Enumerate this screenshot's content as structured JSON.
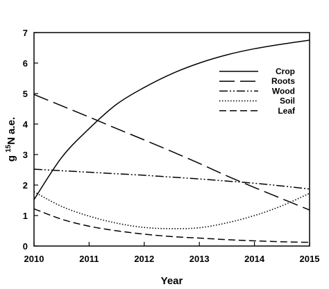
{
  "chart_data": {
    "type": "line",
    "title": "",
    "xlabel": "Year",
    "ylabel_prefix": "g ",
    "ylabel_sup": "15",
    "ylabel_suffix": "N a.e.",
    "xlim": [
      2010,
      2015
    ],
    "ylim": [
      0,
      7
    ],
    "xticks": [
      "2010",
      "2011",
      "2012",
      "2013",
      "2014",
      "2015"
    ],
    "yticks": [
      "0",
      "1",
      "2",
      "3",
      "4",
      "5",
      "6",
      "7"
    ],
    "grid": false,
    "legend_position": "upper-right",
    "x": [
      2010,
      2010.5,
      2011,
      2011.5,
      2012,
      2012.5,
      2013,
      2013.5,
      2014,
      2014.5,
      2015
    ],
    "series": [
      {
        "name": "Crop",
        "dash": "solid",
        "values": [
          1.52,
          2.9,
          3.85,
          4.65,
          5.2,
          5.65,
          6.0,
          6.27,
          6.47,
          6.62,
          6.75
        ]
      },
      {
        "name": "Roots",
        "dash": "long-dash",
        "values": [
          4.97,
          4.6,
          4.23,
          3.85,
          3.48,
          3.1,
          2.71,
          2.3,
          1.92,
          1.55,
          1.18
        ]
      },
      {
        "name": "Wood",
        "dash": "dash-dot-dot",
        "values": [
          2.52,
          2.47,
          2.42,
          2.37,
          2.32,
          2.26,
          2.2,
          2.13,
          2.06,
          1.97,
          1.87
        ]
      },
      {
        "name": "Soil",
        "dash": "dotted",
        "values": [
          1.78,
          1.3,
          0.98,
          0.75,
          0.61,
          0.57,
          0.6,
          0.76,
          1.0,
          1.32,
          1.73
        ]
      },
      {
        "name": "Leaf",
        "dash": "dashed",
        "values": [
          1.22,
          0.88,
          0.65,
          0.5,
          0.39,
          0.31,
          0.26,
          0.21,
          0.17,
          0.14,
          0.12
        ]
      }
    ]
  }
}
